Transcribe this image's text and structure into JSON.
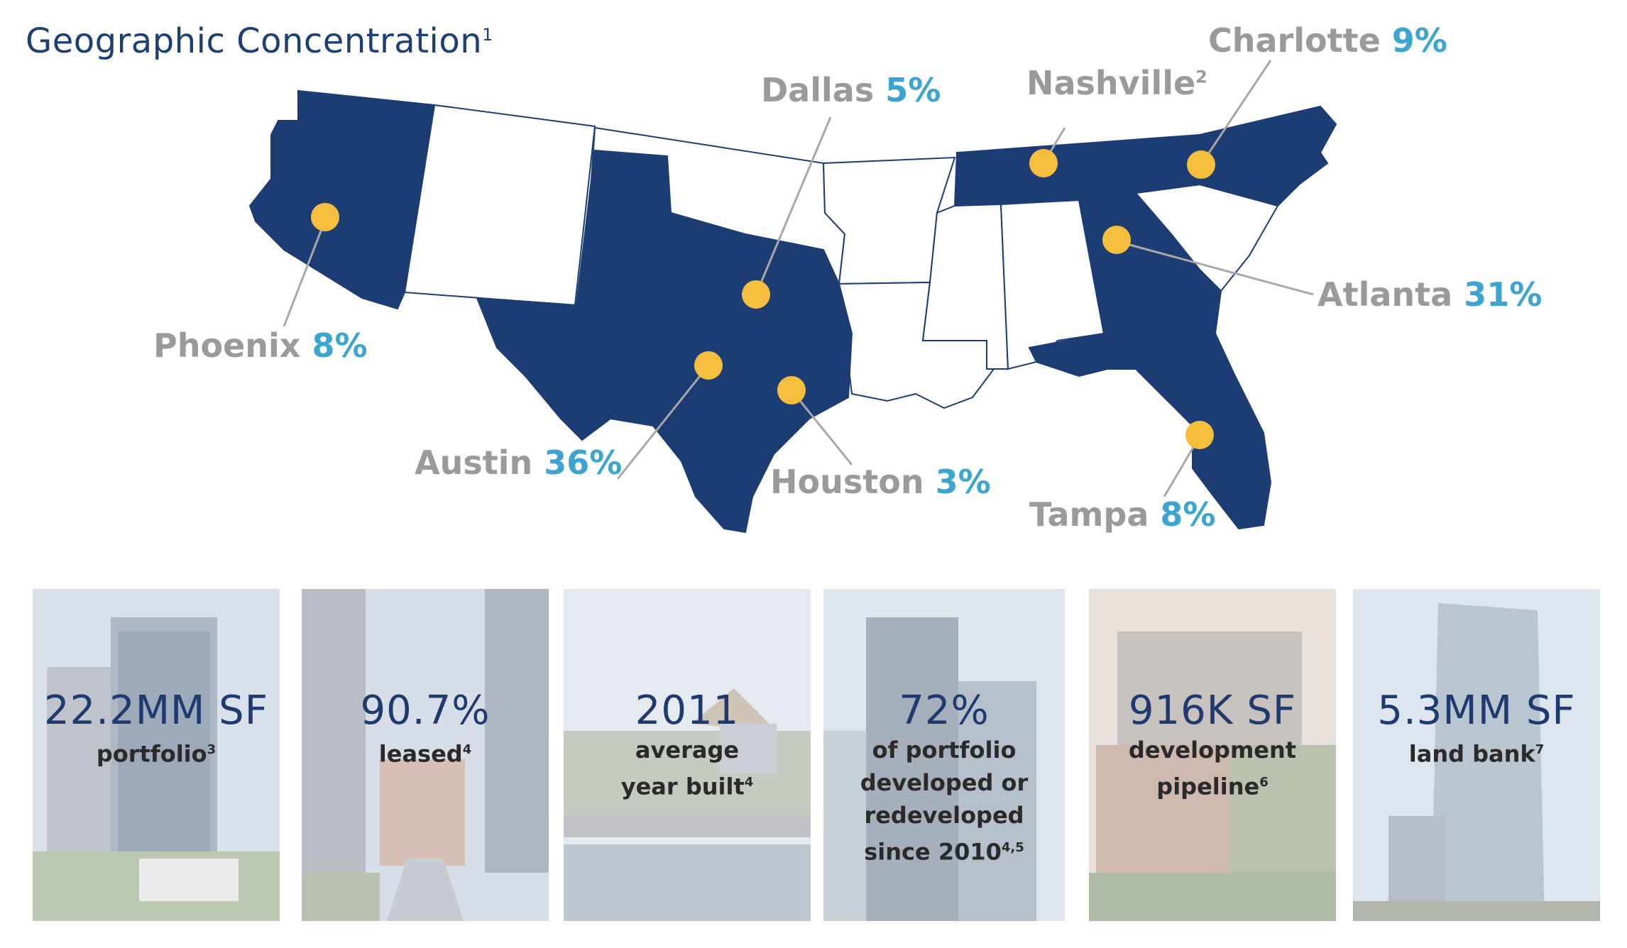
{
  "header": {
    "title": "Geographic Concentration",
    "title_note": "1"
  },
  "colors": {
    "highlight_state": "#1c3d73",
    "outline_state": "#1c3d73",
    "marker": "#f5be3d",
    "city_name": "#9a9a9a",
    "city_pct": "#3ba5cf"
  },
  "cities": [
    {
      "name": "Phoenix",
      "pct": "8%",
      "note": ""
    },
    {
      "name": "Dallas",
      "pct": "5%",
      "note": ""
    },
    {
      "name": "Nashville",
      "pct": "",
      "note": "2"
    },
    {
      "name": "Charlotte",
      "pct": "9%",
      "note": ""
    },
    {
      "name": "Atlanta",
      "pct": "31%",
      "note": ""
    },
    {
      "name": "Austin",
      "pct": "36%",
      "note": ""
    },
    {
      "name": "Houston",
      "pct": "3%",
      "note": ""
    },
    {
      "name": "Tampa",
      "pct": "8%",
      "note": ""
    }
  ],
  "stats": [
    {
      "value": "22.2MM SF",
      "lines": [
        "portfolio"
      ],
      "note": "3"
    },
    {
      "value": "90.7%",
      "lines": [
        "leased"
      ],
      "note": "4"
    },
    {
      "value": "2011",
      "lines": [
        "average",
        "year built"
      ],
      "note": "4"
    },
    {
      "value": "72%",
      "lines": [
        "of portfolio",
        "developed or",
        "redeveloped",
        "since 2010"
      ],
      "note": "4,5"
    },
    {
      "value": "916K SF",
      "lines": [
        "development",
        "pipeline"
      ],
      "note": "6"
    },
    {
      "value": "5.3MM SF",
      "lines": [
        "land bank"
      ],
      "note": "7"
    }
  ]
}
